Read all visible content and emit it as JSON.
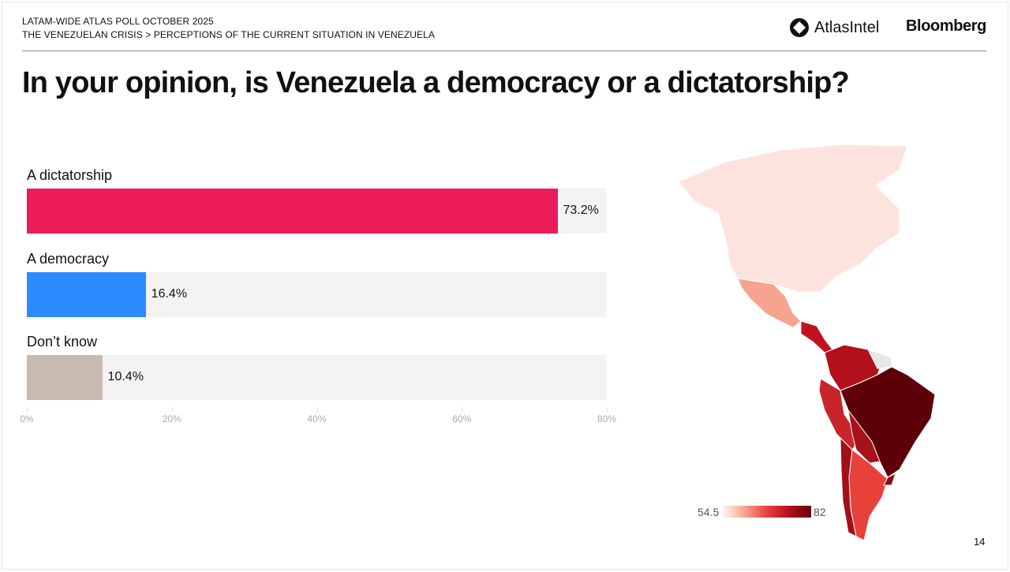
{
  "header": {
    "kicker": "LATAM-WIDE ATLAS POLL OCTOBER 2025",
    "breadcrumb": "THE VENEZUELAN CRISIS > PERCEPTIONS OF THE CURRENT SITUATION IN VENEZUELA",
    "logos": [
      "AtlasIntel",
      "Bloomberg"
    ]
  },
  "chart_data": [
    {
      "type": "bar",
      "orientation": "horizontal",
      "title": "In your opinion, is Venezuela a democracy or a dictatorship?",
      "categories": [
        "A dictatorship",
        "A democracy",
        "Don’t know"
      ],
      "values": [
        73.2,
        16.4,
        10.4
      ],
      "value_labels": [
        "73.2%",
        "16.4%",
        "10.4%"
      ],
      "colors": [
        "#ec1c5b",
        "#2b8cff",
        "#c9bab1"
      ],
      "xlim": [
        0,
        80
      ],
      "xticks": [
        "0%",
        "20%",
        "40%",
        "60%",
        "80%"
      ],
      "grid": false
    },
    {
      "type": "choropleth",
      "region": "Americas",
      "colorscale": {
        "min": 54.5,
        "max": 82,
        "min_label": "54.5",
        "max_label": "82",
        "colors": [
          "#fff5f2",
          "#67000d"
        ]
      }
    }
  ],
  "footer": {
    "page_number": "14"
  }
}
